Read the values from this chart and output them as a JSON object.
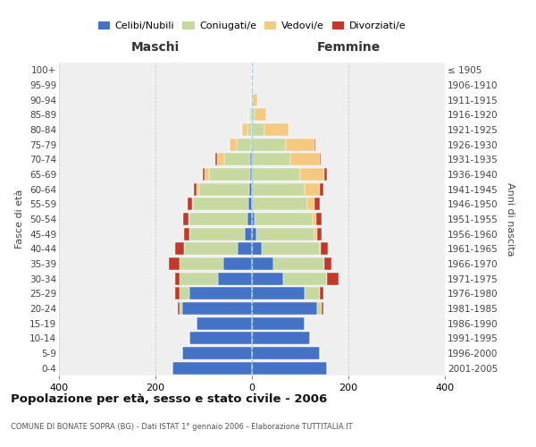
{
  "age_groups": [
    "0-4",
    "5-9",
    "10-14",
    "15-19",
    "20-24",
    "25-29",
    "30-34",
    "35-39",
    "40-44",
    "45-49",
    "50-54",
    "55-59",
    "60-64",
    "65-69",
    "70-74",
    "75-79",
    "80-84",
    "85-89",
    "90-94",
    "95-99",
    "100+"
  ],
  "birth_years": [
    "2001-2005",
    "1996-2000",
    "1991-1995",
    "1986-1990",
    "1981-1985",
    "1976-1980",
    "1971-1975",
    "1966-1970",
    "1961-1965",
    "1956-1960",
    "1951-1955",
    "1946-1950",
    "1941-1945",
    "1936-1940",
    "1931-1935",
    "1926-1930",
    "1921-1925",
    "1916-1920",
    "1911-1915",
    "1906-1910",
    "≤ 1905"
  ],
  "colors": {
    "celibi": "#4472C4",
    "coniugati": "#c5d9a0",
    "vedovi": "#f5c97f",
    "divorziati": "#c0392b"
  },
  "maschi": {
    "celibi": [
      165,
      145,
      130,
      115,
      145,
      130,
      70,
      60,
      30,
      15,
      10,
      7,
      5,
      3,
      3,
      2,
      0,
      0,
      0,
      0,
      0
    ],
    "coniugati": [
      0,
      0,
      0,
      0,
      5,
      20,
      80,
      90,
      110,
      115,
      120,
      115,
      105,
      85,
      55,
      30,
      10,
      3,
      2,
      0,
      0
    ],
    "vedovi": [
      0,
      0,
      0,
      0,
      0,
      0,
      0,
      0,
      0,
      0,
      2,
      3,
      5,
      10,
      15,
      15,
      10,
      2,
      0,
      0,
      0
    ],
    "divorziati": [
      0,
      0,
      0,
      0,
      3,
      10,
      10,
      22,
      20,
      10,
      10,
      8,
      5,
      3,
      2,
      0,
      0,
      0,
      0,
      0,
      0
    ]
  },
  "femmine": {
    "celibi": [
      155,
      140,
      120,
      110,
      135,
      110,
      65,
      45,
      20,
      10,
      5,
      0,
      0,
      0,
      0,
      0,
      0,
      0,
      0,
      0,
      0
    ],
    "coniugati": [
      0,
      0,
      0,
      0,
      10,
      30,
      90,
      105,
      120,
      120,
      120,
      115,
      110,
      100,
      80,
      70,
      25,
      5,
      2,
      0,
      0
    ],
    "vedovi": [
      0,
      0,
      0,
      0,
      0,
      0,
      0,
      0,
      3,
      5,
      8,
      15,
      30,
      50,
      60,
      60,
      50,
      25,
      10,
      2,
      0
    ],
    "divorziati": [
      0,
      0,
      0,
      0,
      3,
      8,
      25,
      15,
      15,
      10,
      12,
      10,
      8,
      5,
      2,
      2,
      0,
      0,
      0,
      0,
      0
    ]
  },
  "xlim": 400,
  "title": "Popolazione per età, sesso e stato civile - 2006",
  "subtitle": "COMUNE DI BONATE SOPRA (BG) - Dati ISTAT 1° gennaio 2006 - Elaborazione TUTTITALIA.IT",
  "ylabel_left": "Fasce di età",
  "ylabel_right": "Anni di nascita",
  "xlabel_maschi": "Maschi",
  "xlabel_femmine": "Femmine",
  "legend_labels": [
    "Celibi/Nubili",
    "Coniugati/e",
    "Vedovi/e",
    "Divorziati/e"
  ],
  "background_color": "#f0f0f0",
  "bar_height": 0.85
}
